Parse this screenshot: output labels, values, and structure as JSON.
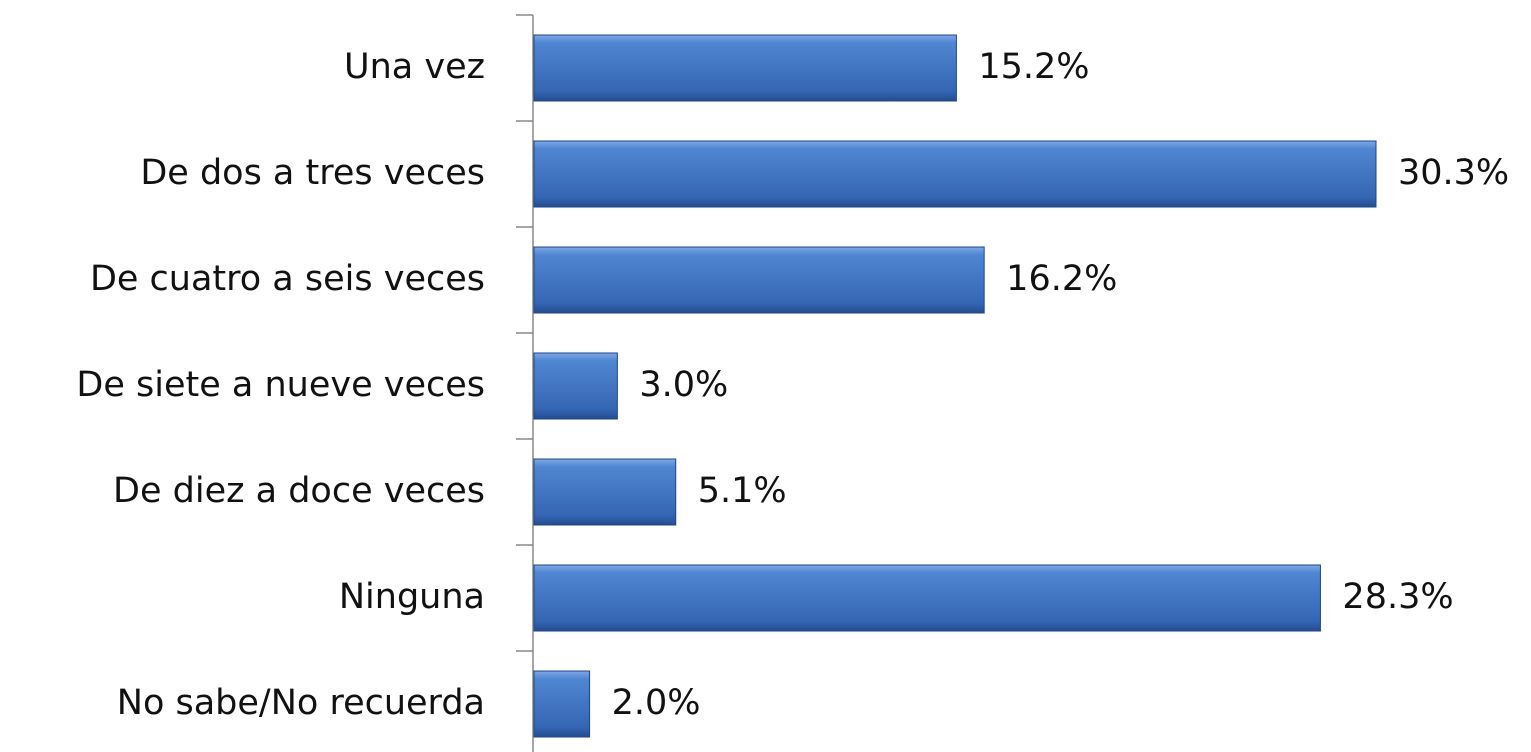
{
  "chart_data": {
    "type": "bar",
    "orientation": "horizontal",
    "categories": [
      "Una vez",
      "De dos a tres veces",
      "De cuatro a seis veces",
      "De siete a nueve veces",
      "De diez a doce veces",
      "Ninguna",
      "No sabe/No recuerda"
    ],
    "values": [
      15.2,
      30.3,
      16.2,
      3.0,
      5.1,
      28.3,
      2.0
    ],
    "value_labels": [
      "15.2%",
      "30.3%",
      "16.2%",
      "3.0%",
      "5.1%",
      "28.3%",
      "2.0%"
    ],
    "color": "#3a70c0"
  }
}
